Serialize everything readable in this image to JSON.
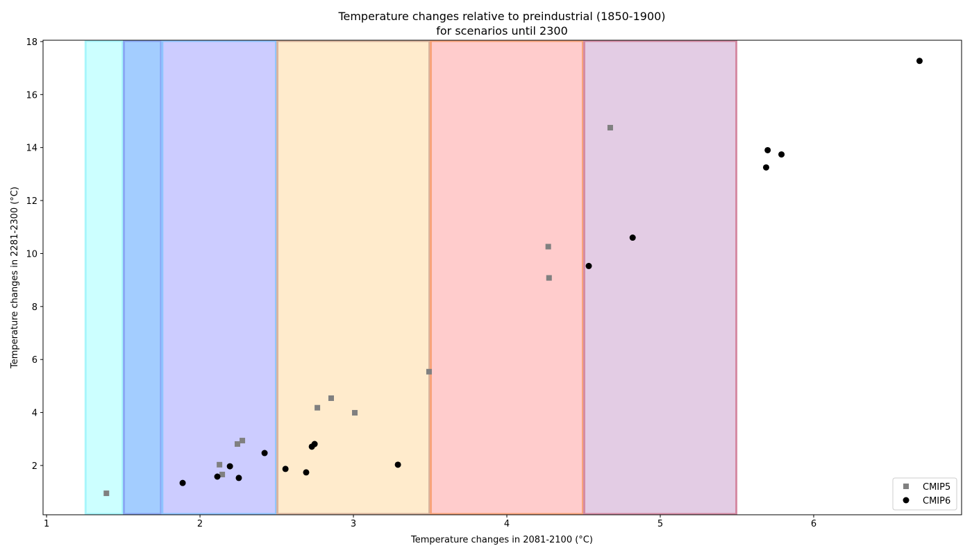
{
  "chart_data": {
    "type": "scatter",
    "title": "Temperature changes relative to preindustrial (1850-1900)",
    "subtitle": "for scenarios until 2300",
    "xlabel": "Temperature changes in 2081-2100 (°C)",
    "ylabel": "Temperature changes in 2281-2300 (°C)",
    "xlim": [
      0.977,
      6.964
    ],
    "ylim": [
      0.14,
      18.05
    ],
    "xticks": [
      1,
      2,
      3,
      4,
      5,
      6
    ],
    "yticks": [
      2,
      4,
      6,
      8,
      10,
      12,
      14,
      16,
      18
    ],
    "grid": false,
    "legend_position": "bottom-right",
    "bands": [
      {
        "x0": 1.25,
        "x1": 1.5,
        "fill": "#ccffff",
        "edge": "#a8f6fb"
      },
      {
        "x0": 1.5,
        "x1": 1.75,
        "fill": "#a3cdff",
        "edge": "#8aa8f4"
      },
      {
        "x0": 1.75,
        "x1": 2.5,
        "fill": "#ccccff",
        "edge": "#8fc5ff"
      },
      {
        "x0": 2.5,
        "x1": 3.5,
        "fill": "#ffebcc",
        "edge": "#d9b49e"
      },
      {
        "x0": 3.5,
        "x1": 4.5,
        "fill": "#ffcccc",
        "edge": "#f8a37a"
      },
      {
        "x0": 4.5,
        "x1": 5.5,
        "fill": "#e3cce4",
        "edge": "#d58ba4"
      }
    ],
    "series": [
      {
        "name": "CMIP5",
        "marker": "square",
        "color": "#808080",
        "points": [
          [
            1.39,
            0.95
          ],
          [
            2.127,
            2.03
          ],
          [
            2.145,
            1.66
          ],
          [
            2.244,
            2.81
          ],
          [
            2.276,
            2.94
          ],
          [
            2.765,
            4.18
          ],
          [
            2.855,
            4.54
          ],
          [
            3.009,
            3.99
          ],
          [
            3.493,
            5.54
          ],
          [
            4.27,
            10.26
          ],
          [
            4.275,
            9.08
          ],
          [
            4.674,
            14.75
          ]
        ]
      },
      {
        "name": "CMIP6",
        "marker": "circle",
        "color": "#000000",
        "points": [
          [
            1.887,
            1.34
          ],
          [
            2.113,
            1.58
          ],
          [
            2.195,
            1.97
          ],
          [
            2.253,
            1.53
          ],
          [
            2.421,
            2.47
          ],
          [
            2.557,
            1.87
          ],
          [
            2.692,
            1.74
          ],
          [
            2.729,
            2.71
          ],
          [
            2.747,
            2.81
          ],
          [
            3.29,
            2.03
          ],
          [
            4.534,
            9.53
          ],
          [
            4.82,
            10.6
          ],
          [
            5.69,
            13.25
          ],
          [
            5.7,
            13.9
          ],
          [
            5.79,
            13.74
          ],
          [
            6.69,
            17.27
          ]
        ]
      }
    ]
  }
}
